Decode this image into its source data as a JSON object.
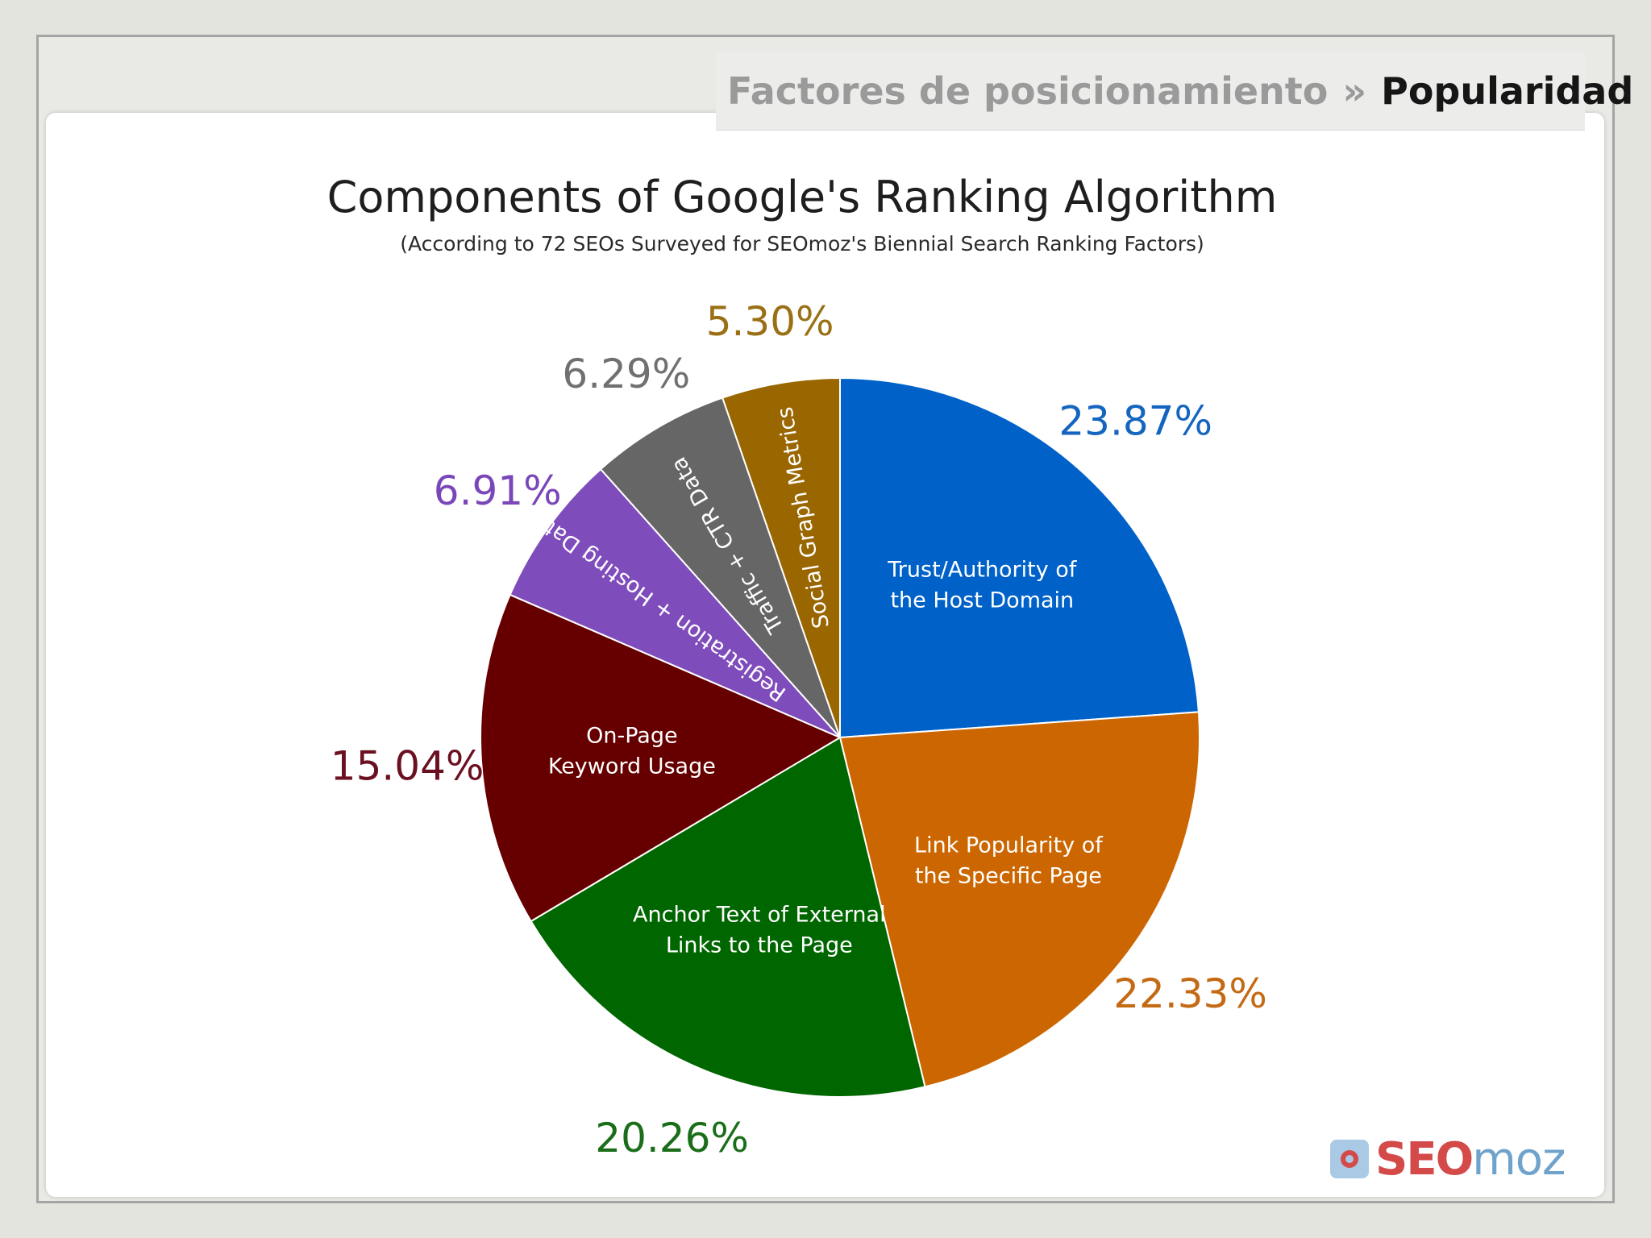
{
  "header": {
    "breadcrumb_parent": "Factores de posicionamiento",
    "breadcrumb_separator": "»",
    "breadcrumb_current": "Popularidad"
  },
  "chart_data": {
    "type": "pie",
    "title": "Components of Google's Ranking Algorithm",
    "subtitle": "(According to 72 SEOs Surveyed for SEOmoz's Biennial Search Ranking Factors)",
    "slices": [
      {
        "label": [
          "Trust/Authority of",
          "the Host Domain"
        ],
        "value": 23.87,
        "display": "23.87%",
        "color": "#0062c9",
        "text_color": "#1565c0"
      },
      {
        "label": [
          "Link Popularity of",
          "the Specific Page"
        ],
        "value": 22.33,
        "display": "22.33%",
        "color": "#cc6600",
        "text_color": "#c46a14"
      },
      {
        "label": [
          "Anchor Text of External",
          "Links to the Page"
        ],
        "value": 20.26,
        "display": "20.26%",
        "color": "#006600",
        "text_color": "#1a6e1a"
      },
      {
        "label": [
          "On-Page",
          "Keyword Usage"
        ],
        "value": 15.04,
        "display": "15.04%",
        "color": "#660000",
        "text_color": "#6b1020"
      },
      {
        "label": [
          "Registration + Hosting Data"
        ],
        "value": 6.91,
        "display": "6.91%",
        "color": "#7f4cbb",
        "text_color": "#7a47b8"
      },
      {
        "label": [
          "Traffic + CTR Data"
        ],
        "value": 6.29,
        "display": "6.29%",
        "color": "#666666",
        "text_color": "#707070"
      },
      {
        "label": [
          "Social Graph Metrics"
        ],
        "value": 5.3,
        "display": "5.30%",
        "color": "#996600",
        "text_color": "#9a7014"
      }
    ]
  },
  "logo": {
    "part1": "SEO",
    "part2": "moz"
  }
}
